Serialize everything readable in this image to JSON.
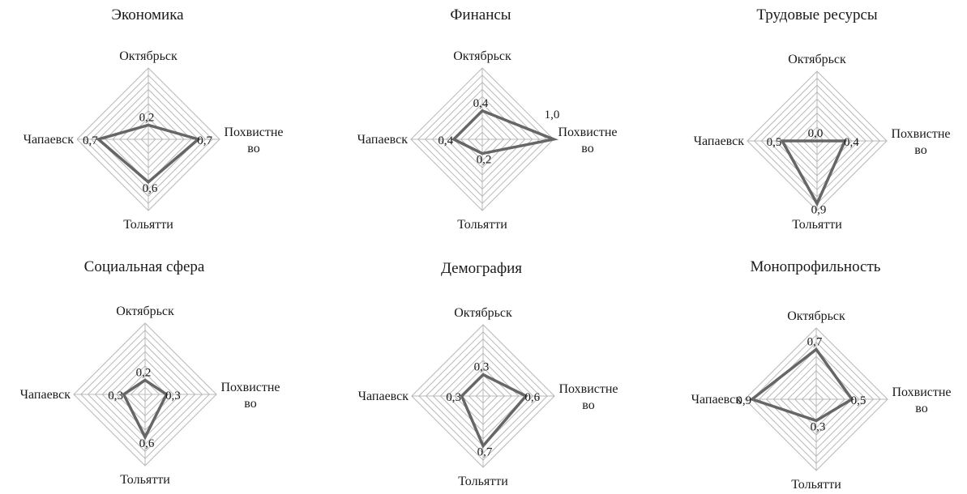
{
  "chart_data": [
    {
      "type": "radar",
      "title": "Экономика",
      "axes": [
        "Октябрьск",
        "Похвистне\nво",
        "Тольятти",
        "Чапаевск"
      ],
      "values": [
        0.2,
        0.7,
        0.6,
        0.7
      ],
      "value_labels": [
        "0,2",
        "0,7",
        "0,6",
        "0,7"
      ],
      "rlim": [
        0,
        1
      ],
      "grid": true,
      "gridlines": 10
    },
    {
      "type": "radar",
      "title": "Финансы",
      "axes": [
        "Октябрьск",
        "Похвистне\nво",
        "Тольятти",
        "Чапаевск"
      ],
      "values": [
        0.4,
        1.0,
        0.2,
        0.4
      ],
      "value_labels": [
        "0,4",
        "1,0",
        "0,2",
        "0,4"
      ],
      "rlim": [
        0,
        1
      ],
      "grid": true,
      "gridlines": 10
    },
    {
      "type": "radar",
      "title": "Трудовые ресурсы",
      "axes": [
        "Октябрьск",
        "Похвистне\nво",
        "Тольятти",
        "Чапаевск"
      ],
      "values": [
        0.0,
        0.4,
        0.9,
        0.5
      ],
      "value_labels": [
        "0,0",
        "0,4",
        "0,9",
        "0,5"
      ],
      "rlim": [
        0,
        1
      ],
      "grid": true,
      "gridlines": 10
    },
    {
      "type": "radar",
      "title": "Социальная сфера",
      "axes": [
        "Октябрьск",
        "Похвистне\nво",
        "Тольятти",
        "Чапаевск"
      ],
      "values": [
        0.2,
        0.3,
        0.6,
        0.3
      ],
      "value_labels": [
        "0,2",
        "0,3",
        "0,6",
        "0,3"
      ],
      "rlim": [
        0,
        1
      ],
      "grid": true,
      "gridlines": 10
    },
    {
      "type": "radar",
      "title": "Демография",
      "axes": [
        "Октябрьск",
        "Похвистне\nво",
        "Тольятти",
        "Чапаевск"
      ],
      "values": [
        0.3,
        0.6,
        0.7,
        0.3
      ],
      "value_labels": [
        "0,3",
        "0,6",
        "0,7",
        "0,3"
      ],
      "rlim": [
        0,
        1
      ],
      "grid": true,
      "gridlines": 10
    },
    {
      "type": "radar",
      "title": "Монопрофильность",
      "axes": [
        "Октябрьск",
        "Похвистне\nво",
        "Тольятти",
        "Чапаевск"
      ],
      "values": [
        0.7,
        0.5,
        0.3,
        0.9
      ],
      "value_labels": [
        "0,7",
        "0,5",
        "0,3",
        "0,9"
      ],
      "rlim": [
        0,
        1
      ],
      "grid": true,
      "gridlines": 10
    }
  ],
  "colors": {
    "grid": "#b8b8b8",
    "series": "#666666",
    "text": "#1a1a1a"
  }
}
